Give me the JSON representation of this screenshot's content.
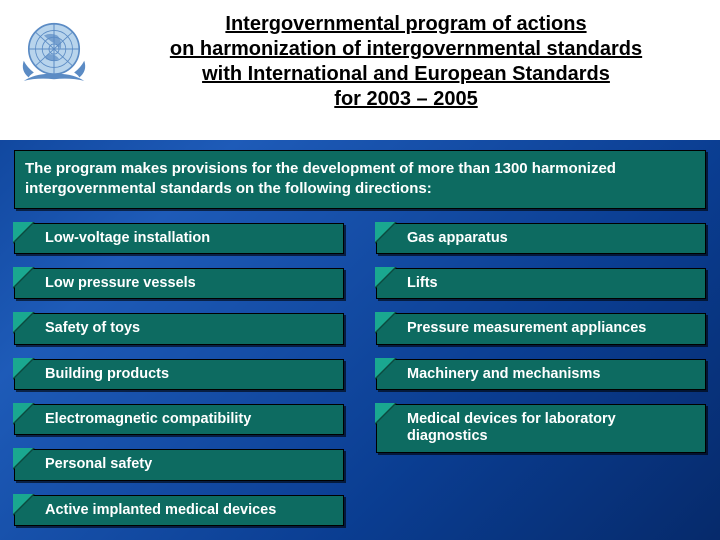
{
  "title": {
    "line1": "Intergovernmental program of actions",
    "line2": "on harmonization of intergovernmental standards",
    "line3": "with International and European Standards",
    "line4": "for 2003 – 2005"
  },
  "intro": "The program makes provisions for the development of more than 1300 harmonized intergovernmental standards on the following directions:",
  "left_items": [
    "Low-voltage installation",
    "Low pressure vessels",
    "Safety of toys",
    "Building products",
    "Electromagnetic compatibility",
    "Personal safety",
    "Active implanted medical devices"
  ],
  "right_items": [
    "Gas apparatus",
    "Lifts",
    "Pressure measurement appliances",
    "Machinery and mechanisms",
    "Medical devices for laboratory diagnostics"
  ],
  "colors": {
    "box_bg": "#0d6b61",
    "page_bg_top": "#0a3d91",
    "title_bg": "#ffffff",
    "logo_blue": "#5b8bc4",
    "logo_light": "#b8d4ec"
  }
}
